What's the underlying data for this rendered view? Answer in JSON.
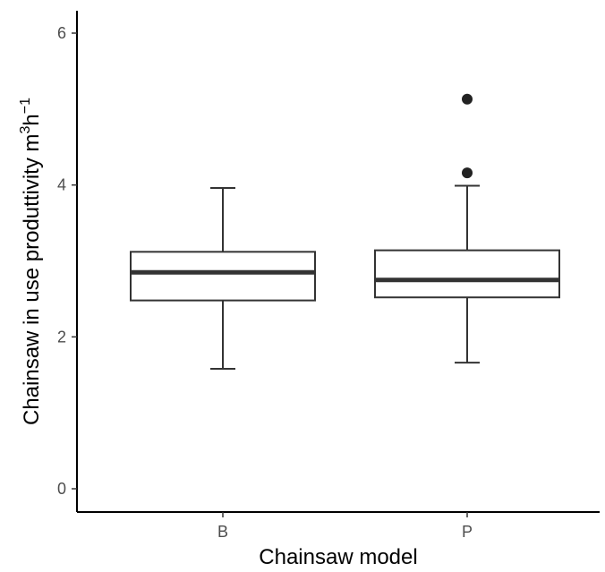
{
  "chart_data": {
    "type": "boxplot",
    "title": "",
    "xlabel": "Chainsaw model",
    "ylabel": {
      "prefix": "Chainsaw in use produttivity  m",
      "sup1": "3",
      "mid": "h",
      "sup2": "−1"
    },
    "ylim": [
      0,
      6
    ],
    "yticks": [
      0,
      2,
      4,
      6
    ],
    "categories": [
      "B",
      "P"
    ],
    "boxes": [
      {
        "category": "B",
        "whisker_low": 1.58,
        "q1": 2.48,
        "median": 2.85,
        "q3": 3.12,
        "whisker_high": 3.96,
        "outliers": []
      },
      {
        "category": "P",
        "whisker_low": 1.66,
        "q1": 2.52,
        "median": 2.75,
        "q3": 3.14,
        "whisker_high": 3.99,
        "outliers": [
          4.16,
          5.13
        ]
      }
    ],
    "grid": false,
    "legend": "none",
    "colors": {
      "box_line": "#333333",
      "median_line": "#333333",
      "outlier": "#222222",
      "axis": "#000000",
      "tick_text": "#4d4d4d"
    }
  }
}
